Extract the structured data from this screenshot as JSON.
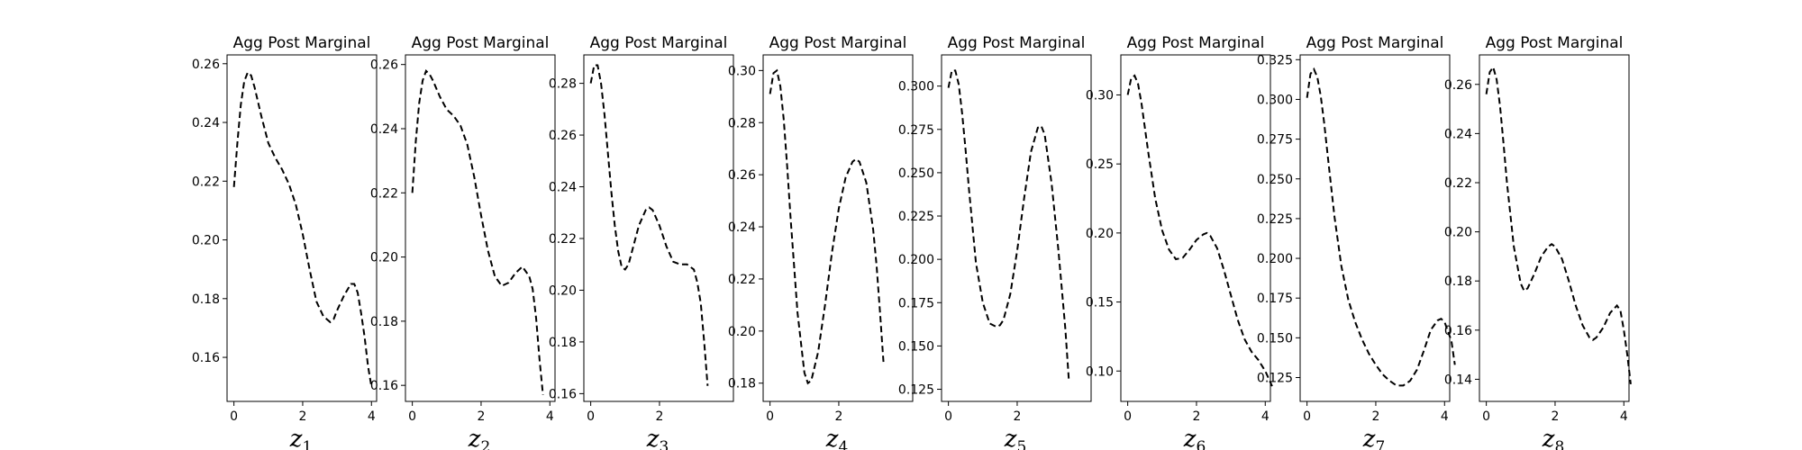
{
  "chart_data": [
    {
      "type": "line",
      "title": "Agg Post Marginal",
      "xlabel_base": "z",
      "xlabel_sub": "1",
      "xlim": [
        -0.2,
        4.15
      ],
      "ylim": [
        0.145,
        0.263
      ],
      "xticks": [
        0,
        2,
        4
      ],
      "yticks": [
        0.16,
        0.18,
        0.2,
        0.22,
        0.24,
        0.26
      ],
      "ytick_labels": [
        "0.16",
        "0.18",
        "0.20",
        "0.22",
        "0.24",
        "0.26"
      ],
      "line_style": "dashed",
      "line_color": "#000000",
      "x": [
        0.0,
        0.1,
        0.2,
        0.3,
        0.4,
        0.5,
        0.6,
        0.8,
        1.0,
        1.2,
        1.4,
        1.6,
        1.8,
        2.0,
        2.2,
        2.4,
        2.6,
        2.8,
        2.9,
        3.0,
        3.2,
        3.4,
        3.5,
        3.6,
        3.7,
        3.8,
        3.9,
        4.0
      ],
      "y": [
        0.218,
        0.233,
        0.246,
        0.254,
        0.257,
        0.256,
        0.252,
        0.242,
        0.233,
        0.228,
        0.224,
        0.219,
        0.212,
        0.202,
        0.19,
        0.179,
        0.174,
        0.172,
        0.173,
        0.176,
        0.181,
        0.185,
        0.185,
        0.182,
        0.175,
        0.167,
        0.157,
        0.15
      ]
    },
    {
      "type": "line",
      "title": "Agg Post Marginal",
      "xlabel_base": "z",
      "xlabel_sub": "2",
      "xlim": [
        -0.2,
        4.15
      ],
      "ylim": [
        0.155,
        0.263
      ],
      "xticks": [
        0,
        2,
        4
      ],
      "yticks": [
        0.16,
        0.18,
        0.2,
        0.22,
        0.24,
        0.26
      ],
      "ytick_labels": [
        "0.16",
        "0.18",
        "0.20",
        "0.22",
        "0.24",
        "0.26"
      ],
      "line_style": "dashed",
      "line_color": "#000000",
      "x": [
        0.0,
        0.1,
        0.2,
        0.3,
        0.4,
        0.5,
        0.6,
        0.8,
        1.0,
        1.2,
        1.4,
        1.6,
        1.8,
        2.0,
        2.2,
        2.4,
        2.6,
        2.8,
        3.0,
        3.2,
        3.4,
        3.5,
        3.6,
        3.7,
        3.8
      ],
      "y": [
        0.22,
        0.236,
        0.248,
        0.255,
        0.258,
        0.257,
        0.255,
        0.25,
        0.246,
        0.244,
        0.241,
        0.235,
        0.225,
        0.213,
        0.202,
        0.194,
        0.191,
        0.192,
        0.195,
        0.197,
        0.194,
        0.19,
        0.181,
        0.168,
        0.157
      ]
    },
    {
      "type": "line",
      "title": "Agg Post Marginal",
      "xlabel_base": "z",
      "xlabel_sub": "3",
      "xlim": [
        -0.2,
        4.15
      ],
      "ylim": [
        0.157,
        0.291
      ],
      "xticks": [
        0,
        2
      ],
      "yticks": [
        0.16,
        0.18,
        0.2,
        0.22,
        0.24,
        0.26,
        0.28
      ],
      "ytick_labels": [
        "0.16",
        "0.18",
        "0.20",
        "0.22",
        "0.24",
        "0.26",
        "0.28"
      ],
      "line_style": "dashed",
      "line_color": "#000000",
      "x": [
        0.0,
        0.1,
        0.2,
        0.3,
        0.4,
        0.5,
        0.6,
        0.7,
        0.8,
        0.9,
        1.0,
        1.1,
        1.2,
        1.4,
        1.6,
        1.7,
        1.8,
        2.0,
        2.2,
        2.4,
        2.6,
        2.8,
        3.0,
        3.1,
        3.2,
        3.3,
        3.4
      ],
      "y": [
        0.28,
        0.287,
        0.287,
        0.28,
        0.268,
        0.253,
        0.238,
        0.225,
        0.215,
        0.209,
        0.208,
        0.21,
        0.215,
        0.225,
        0.231,
        0.232,
        0.231,
        0.225,
        0.217,
        0.211,
        0.21,
        0.21,
        0.208,
        0.203,
        0.195,
        0.18,
        0.163
      ]
    },
    {
      "type": "line",
      "title": "Agg Post Marginal",
      "xlabel_base": "z",
      "xlabel_sub": "4",
      "xlim": [
        -0.2,
        4.15
      ],
      "ylim": [
        0.173,
        0.306
      ],
      "xticks": [
        0,
        2
      ],
      "yticks": [
        0.18,
        0.2,
        0.22,
        0.24,
        0.26,
        0.28,
        0.3
      ],
      "ytick_labels": [
        "0.18",
        "0.20",
        "0.22",
        "0.24",
        "0.26",
        "0.28",
        "0.30"
      ],
      "line_style": "dashed",
      "line_color": "#000000",
      "x": [
        0.0,
        0.1,
        0.2,
        0.3,
        0.4,
        0.5,
        0.6,
        0.8,
        1.0,
        1.1,
        1.2,
        1.4,
        1.6,
        1.8,
        2.0,
        2.2,
        2.4,
        2.5,
        2.6,
        2.8,
        3.0,
        3.1,
        3.2,
        3.3
      ],
      "y": [
        0.291,
        0.299,
        0.3,
        0.294,
        0.281,
        0.263,
        0.243,
        0.207,
        0.184,
        0.18,
        0.181,
        0.192,
        0.21,
        0.23,
        0.247,
        0.259,
        0.265,
        0.266,
        0.265,
        0.257,
        0.239,
        0.225,
        0.207,
        0.188
      ]
    },
    {
      "type": "line",
      "title": "Agg Post Marginal",
      "xlabel_base": "z",
      "xlabel_sub": "5",
      "xlim": [
        -0.2,
        4.15
      ],
      "ylim": [
        0.118,
        0.318
      ],
      "xticks": [
        0,
        2
      ],
      "yticks": [
        0.125,
        0.15,
        0.175,
        0.2,
        0.225,
        0.25,
        0.275,
        0.3
      ],
      "ytick_labels": [
        "0.125",
        "0.150",
        "0.175",
        "0.200",
        "0.225",
        "0.250",
        "0.275",
        "0.300"
      ],
      "line_style": "dashed",
      "line_color": "#000000",
      "x": [
        0.0,
        0.1,
        0.2,
        0.3,
        0.4,
        0.5,
        0.6,
        0.8,
        1.0,
        1.2,
        1.4,
        1.5,
        1.6,
        1.8,
        2.0,
        2.2,
        2.4,
        2.6,
        2.7,
        2.8,
        3.0,
        3.2,
        3.4,
        3.5
      ],
      "y": [
        0.299,
        0.309,
        0.309,
        0.301,
        0.284,
        0.263,
        0.24,
        0.198,
        0.175,
        0.163,
        0.161,
        0.162,
        0.165,
        0.18,
        0.205,
        0.235,
        0.262,
        0.276,
        0.277,
        0.272,
        0.244,
        0.205,
        0.16,
        0.131
      ]
    },
    {
      "type": "line",
      "title": "Agg Post Marginal",
      "xlabel_base": "z",
      "xlabel_sub": "6",
      "xlim": [
        -0.2,
        4.15
      ],
      "ylim": [
        0.078,
        0.329
      ],
      "xticks": [
        0,
        2,
        4
      ],
      "yticks": [
        0.1,
        0.15,
        0.2,
        0.25,
        0.3
      ],
      "ytick_labels": [
        "0.10",
        "0.15",
        "0.20",
        "0.25",
        "0.30"
      ],
      "line_style": "dashed",
      "line_color": "#000000",
      "x": [
        0.0,
        0.1,
        0.2,
        0.3,
        0.4,
        0.5,
        0.6,
        0.8,
        1.0,
        1.2,
        1.4,
        1.6,
        1.8,
        2.0,
        2.2,
        2.3,
        2.4,
        2.6,
        2.8,
        3.0,
        3.2,
        3.4,
        3.6,
        3.8,
        4.0,
        4.2
      ],
      "y": [
        0.3,
        0.312,
        0.314,
        0.308,
        0.294,
        0.276,
        0.258,
        0.225,
        0.202,
        0.188,
        0.181,
        0.182,
        0.188,
        0.195,
        0.199,
        0.2,
        0.198,
        0.189,
        0.173,
        0.155,
        0.137,
        0.123,
        0.114,
        0.108,
        0.1,
        0.089
      ]
    },
    {
      "type": "line",
      "title": "Agg Post Marginal",
      "xlabel_base": "z",
      "xlabel_sub": "7",
      "xlim": [
        -0.2,
        4.15
      ],
      "ylim": [
        0.11,
        0.328
      ],
      "xticks": [
        0,
        2,
        4
      ],
      "yticks": [
        0.125,
        0.15,
        0.175,
        0.2,
        0.225,
        0.25,
        0.275,
        0.3,
        0.325
      ],
      "ytick_labels": [
        "0.125",
        "0.150",
        "0.175",
        "0.200",
        "0.225",
        "0.250",
        "0.275",
        "0.300",
        "0.325"
      ],
      "line_style": "dashed",
      "line_color": "#000000",
      "x": [
        0.0,
        0.1,
        0.2,
        0.3,
        0.4,
        0.5,
        0.6,
        0.8,
        1.0,
        1.2,
        1.4,
        1.6,
        1.8,
        2.0,
        2.2,
        2.4,
        2.6,
        2.8,
        3.0,
        3.2,
        3.4,
        3.6,
        3.8,
        3.9,
        4.0,
        4.2,
        4.3
      ],
      "y": [
        0.301,
        0.316,
        0.319,
        0.314,
        0.302,
        0.285,
        0.265,
        0.226,
        0.195,
        0.174,
        0.16,
        0.149,
        0.14,
        0.133,
        0.127,
        0.123,
        0.12,
        0.12,
        0.123,
        0.13,
        0.142,
        0.155,
        0.161,
        0.162,
        0.16,
        0.148,
        0.133
      ]
    },
    {
      "type": "line",
      "title": "Agg Post Marginal",
      "xlabel_base": "z",
      "xlabel_sub": "8",
      "xlim": [
        -0.2,
        4.15
      ],
      "ylim": [
        0.131,
        0.272
      ],
      "xticks": [
        0,
        2,
        4
      ],
      "yticks": [
        0.14,
        0.16,
        0.18,
        0.2,
        0.22,
        0.24,
        0.26
      ],
      "ytick_labels": [
        "0.14",
        "0.16",
        "0.18",
        "0.20",
        "0.22",
        "0.24",
        "0.26"
      ],
      "line_style": "dashed",
      "line_color": "#000000",
      "x": [
        0.0,
        0.1,
        0.2,
        0.3,
        0.4,
        0.5,
        0.6,
        0.8,
        1.0,
        1.1,
        1.2,
        1.4,
        1.6,
        1.8,
        1.9,
        2.0,
        2.2,
        2.4,
        2.6,
        2.8,
        3.0,
        3.1,
        3.2,
        3.4,
        3.6,
        3.8,
        3.9,
        4.0,
        4.1,
        4.2
      ],
      "y": [
        0.256,
        0.265,
        0.267,
        0.262,
        0.251,
        0.236,
        0.22,
        0.194,
        0.179,
        0.176,
        0.177,
        0.183,
        0.19,
        0.194,
        0.195,
        0.194,
        0.189,
        0.18,
        0.17,
        0.162,
        0.157,
        0.156,
        0.157,
        0.161,
        0.167,
        0.17,
        0.168,
        0.16,
        0.15,
        0.138
      ]
    }
  ]
}
